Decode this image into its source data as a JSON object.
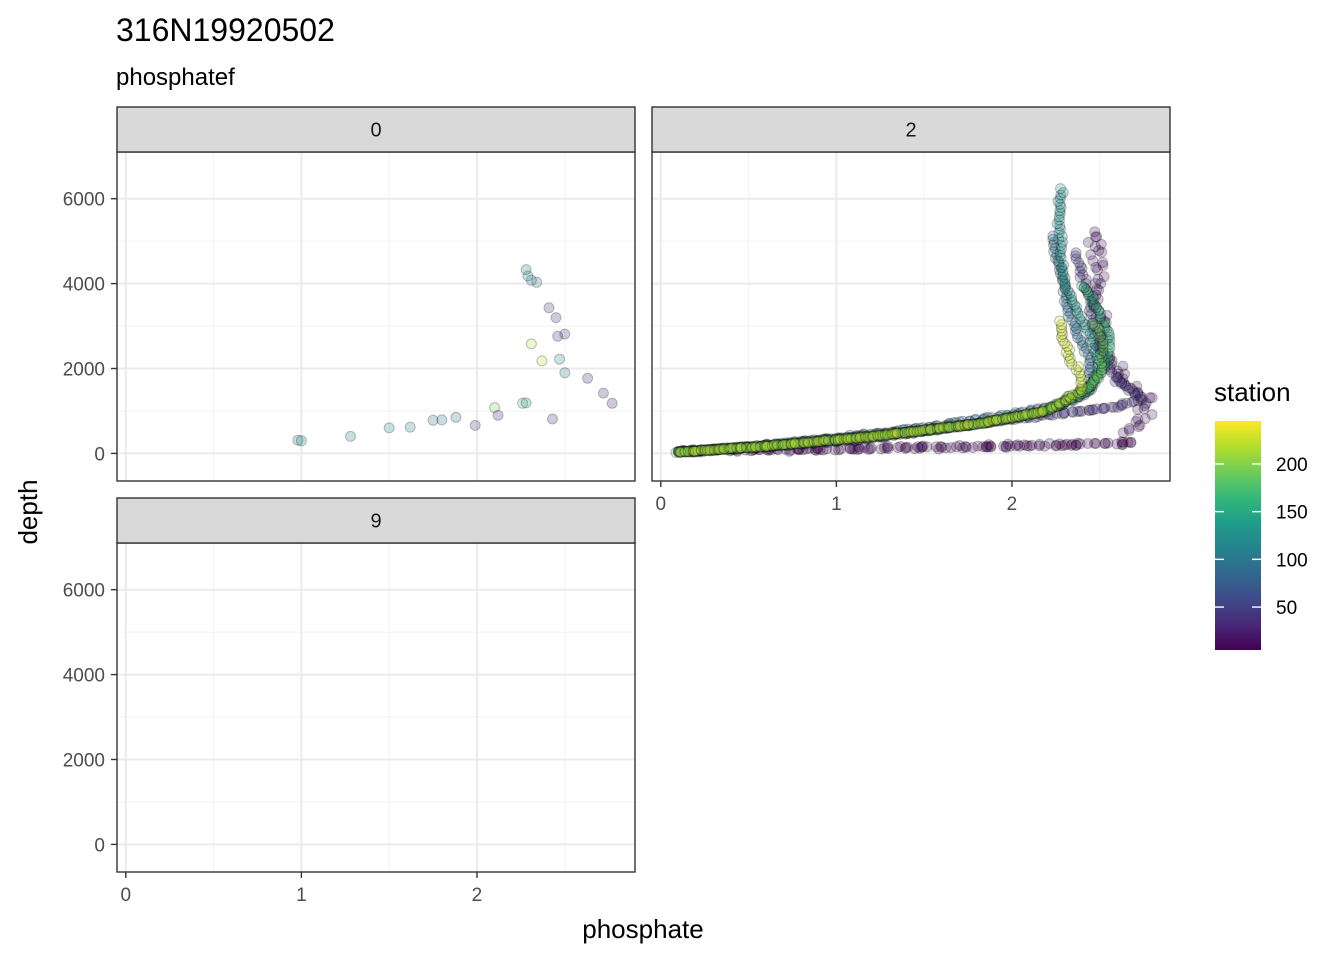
{
  "chart_data": {
    "type": "scatter",
    "title": "316N19920502",
    "subtitle": "phosphatef",
    "xlabel": "phosphate",
    "ylabel": "depth",
    "facet_variable": "phosphatef",
    "xlim": [
      -0.05,
      2.9
    ],
    "ylim": [
      7100,
      -650
    ],
    "y_reversed": true,
    "x_ticks": [
      0,
      1,
      2
    ],
    "y_ticks": [
      0,
      2000,
      4000,
      6000
    ],
    "grid": true,
    "point_alpha": 0.25,
    "colorbar": {
      "title": "station",
      "min": 5,
      "max": 245,
      "ticks": [
        50,
        100,
        150,
        200
      ],
      "palette": [
        "#440154",
        "#482878",
        "#3E4A89",
        "#31688E",
        "#26828E",
        "#1F9E89",
        "#35B779",
        "#6DCD59",
        "#B4DE2C",
        "#FDE725"
      ],
      "placement": "right"
    },
    "panels": [
      {
        "label": "0",
        "points": [
          [
            0.98,
            310,
            110
          ],
          [
            1.0,
            300,
            115
          ],
          [
            1.28,
            400,
            105
          ],
          [
            1.5,
            600,
            110
          ],
          [
            1.62,
            620,
            112
          ],
          [
            1.75,
            780,
            108
          ],
          [
            1.8,
            790,
            105
          ],
          [
            1.88,
            850,
            100
          ],
          [
            1.99,
            660,
            40
          ],
          [
            2.12,
            900,
            30
          ],
          [
            2.1,
            1080,
            190
          ],
          [
            2.26,
            1180,
            185
          ],
          [
            2.28,
            1190,
            130
          ],
          [
            2.43,
            810,
            30
          ],
          [
            2.77,
            1180,
            20
          ],
          [
            2.72,
            1420,
            25
          ],
          [
            2.63,
            1770,
            30
          ],
          [
            2.5,
            1900,
            110
          ],
          [
            2.37,
            2180,
            220
          ],
          [
            2.47,
            2220,
            120
          ],
          [
            2.31,
            2580,
            215
          ],
          [
            2.46,
            2760,
            35
          ],
          [
            2.5,
            2810,
            40
          ],
          [
            2.45,
            3200,
            35
          ],
          [
            2.41,
            3430,
            40
          ],
          [
            2.34,
            4030,
            110
          ],
          [
            2.31,
            4080,
            120
          ],
          [
            2.29,
            4180,
            115
          ],
          [
            2.28,
            4330,
            100
          ]
        ]
      },
      {
        "label": "2",
        "profiles": [
          {
            "station": 8,
            "spread": 0.09,
            "depth_spread": 60,
            "path": [
              [
                0.1,
                50
              ],
              [
                0.6,
                80
              ],
              [
                1.2,
                120
              ],
              [
                1.8,
                160
              ],
              [
                2.3,
                200
              ],
              [
                2.7,
                240
              ]
            ]
          },
          {
            "station": 18,
            "spread": 0.07,
            "depth_spread": 80,
            "path": [
              [
                2.65,
                500
              ],
              [
                2.75,
                900
              ],
              [
                2.78,
                1200
              ],
              [
                2.7,
                1500
              ],
              [
                2.6,
                1900
              ],
              [
                2.52,
                2500
              ],
              [
                2.5,
                3200
              ],
              [
                2.5,
                4200
              ],
              [
                2.48,
                5000
              ],
              [
                2.45,
                5300
              ]
            ]
          },
          {
            "station": 40,
            "spread": 0.03,
            "depth_spread": 30,
            "path": [
              [
                0.1,
                50
              ],
              [
                0.6,
                150
              ],
              [
                1.2,
                350
              ],
              [
                1.8,
                700
              ],
              [
                2.2,
                900
              ],
              [
                2.6,
                1100
              ],
              [
                2.75,
                1300
              ],
              [
                2.6,
                1700
              ],
              [
                2.5,
                2500
              ],
              [
                2.45,
                3500
              ],
              [
                2.38,
                4500
              ],
              [
                2.35,
                4800
              ]
            ]
          },
          {
            "station": 90,
            "spread": 0.03,
            "depth_spread": 25,
            "path": [
              [
                0.1,
                40
              ],
              [
                0.5,
                160
              ],
              [
                1.0,
                360
              ],
              [
                1.5,
                600
              ],
              [
                2.0,
                920
              ],
              [
                2.3,
                1150
              ],
              [
                2.45,
                1500
              ],
              [
                2.45,
                2200
              ],
              [
                2.35,
                3000
              ],
              [
                2.3,
                3800
              ],
              [
                2.25,
                4600
              ],
              [
                2.22,
                5200
              ]
            ]
          },
          {
            "station": 125,
            "spread": 0.025,
            "depth_spread": 20,
            "path": [
              [
                0.1,
                30
              ],
              [
                0.6,
                180
              ],
              [
                1.2,
                420
              ],
              [
                1.8,
                700
              ],
              [
                2.2,
                1000
              ],
              [
                2.45,
                1500
              ],
              [
                2.5,
                2100
              ],
              [
                2.45,
                2700
              ],
              [
                2.38,
                3300
              ],
              [
                2.3,
                3900
              ],
              [
                2.28,
                4600
              ],
              [
                2.27,
                5500
              ],
              [
                2.28,
                6300
              ]
            ]
          },
          {
            "station": 160,
            "spread": 0.025,
            "depth_spread": 20,
            "path": [
              [
                0.1,
                30
              ],
              [
                0.6,
                170
              ],
              [
                1.2,
                400
              ],
              [
                1.8,
                690
              ],
              [
                2.2,
                1000
              ],
              [
                2.45,
                1600
              ],
              [
                2.55,
                2200
              ],
              [
                2.55,
                2800
              ],
              [
                2.5,
                3300
              ],
              [
                2.45,
                3700
              ],
              [
                2.38,
                4000
              ]
            ]
          },
          {
            "station": 190,
            "spread": 0.025,
            "depth_spread": 20,
            "path": [
              [
                0.1,
                30
              ],
              [
                0.6,
                165
              ],
              [
                1.2,
                390
              ],
              [
                1.8,
                680
              ],
              [
                2.15,
                950
              ],
              [
                2.4,
                1400
              ],
              [
                2.5,
                1900
              ],
              [
                2.52,
                2500
              ],
              [
                2.5,
                2900
              ],
              [
                2.45,
                3100
              ]
            ]
          },
          {
            "station": 225,
            "spread": 0.025,
            "depth_spread": 20,
            "path": [
              [
                0.1,
                30
              ],
              [
                0.6,
                170
              ],
              [
                1.2,
                400
              ],
              [
                1.8,
                700
              ],
              [
                2.2,
                1000
              ],
              [
                2.4,
                1500
              ],
              [
                2.38,
                1900
              ],
              [
                2.32,
                2300
              ],
              [
                2.28,
                2800
              ],
              [
                2.28,
                3200
              ]
            ]
          }
        ]
      },
      {
        "label": "9",
        "points": []
      }
    ]
  }
}
